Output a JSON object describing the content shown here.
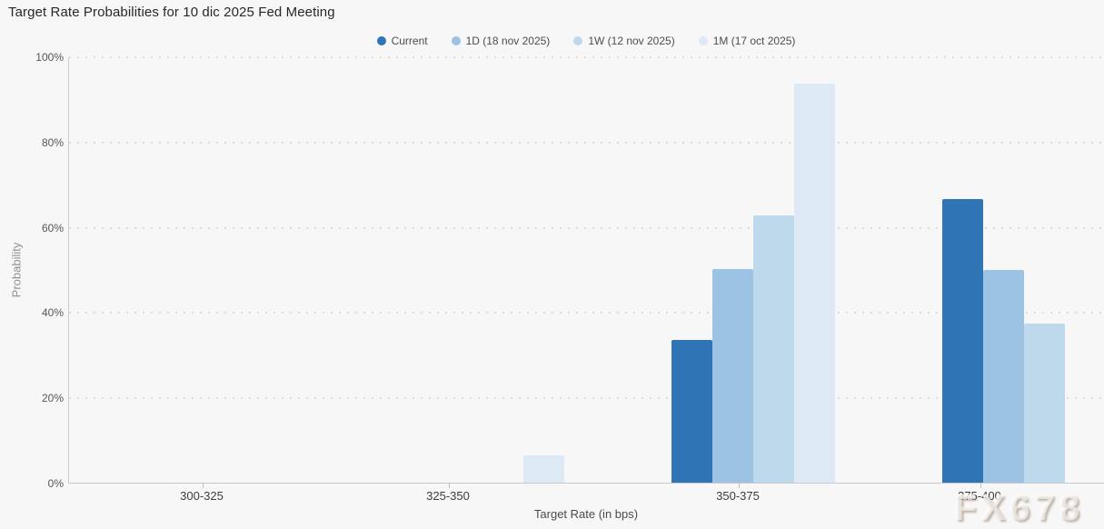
{
  "title": "Target Rate Probabilities for 10 dic 2025 Fed Meeting",
  "watermark": "FX678",
  "chart_data": {
    "type": "bar",
    "title": "Target Rate Probabilities for 10 dic 2025 Fed Meeting",
    "categories": [
      "300-325",
      "325-350",
      "350-375",
      "375-400"
    ],
    "series": [
      {
        "name": "Current",
        "color": "#2f74b4",
        "values": [
          0,
          0,
          33.5,
          66.5
        ]
      },
      {
        "name": "1D (18 nov 2025)",
        "color": "#9cc2e4",
        "values": [
          0,
          0,
          50.1,
          49.9
        ]
      },
      {
        "name": "1W (12 nov 2025)",
        "color": "#bed8ec",
        "values": [
          0,
          0,
          62.7,
          37.3
        ]
      },
      {
        "name": "1M (17 oct 2025)",
        "color": "#dde9f4",
        "values": [
          0,
          6.4,
          93.6,
          0
        ]
      }
    ],
    "xlabel": "Target Rate (in bps)",
    "ylabel": "Probability",
    "ylim": [
      0,
      100
    ],
    "y_tick_labels": [
      "0%",
      "20%",
      "40%",
      "60%",
      "80%",
      "100%"
    ],
    "grid": "horizontal-dotted",
    "legend_position": "top-center",
    "background": "#f7f7f7"
  }
}
